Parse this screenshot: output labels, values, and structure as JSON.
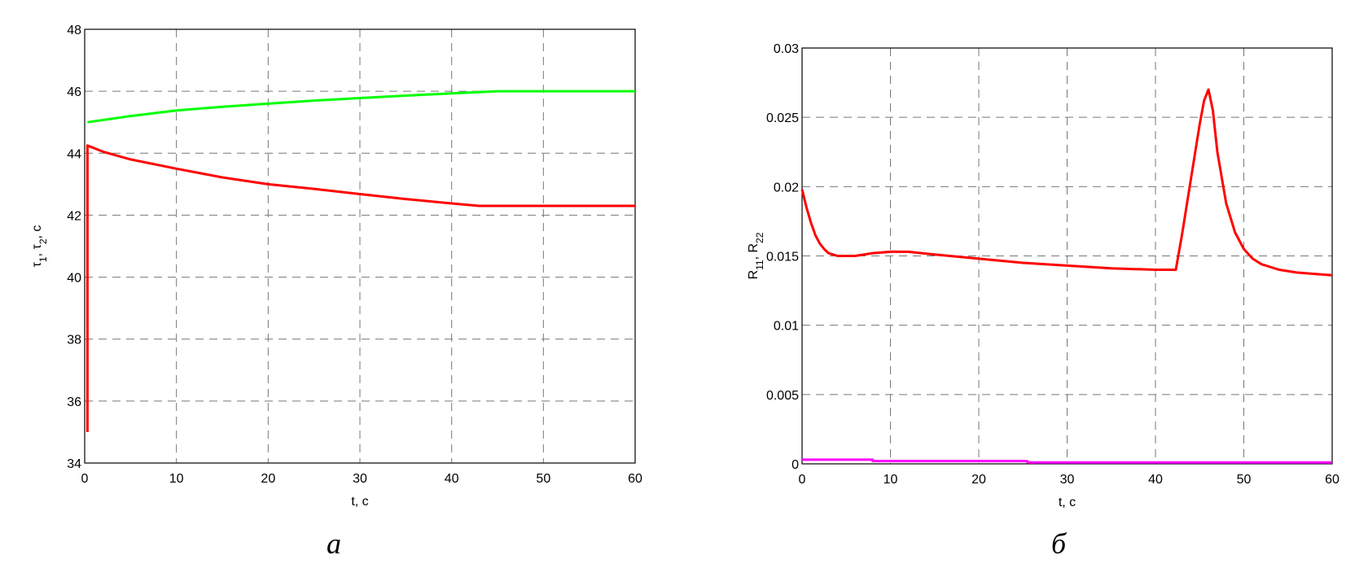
{
  "chart_data": [
    {
      "type": "line",
      "caption": "а",
      "xlabel": "t, c",
      "ylabel": "τ1, τ2, c",
      "ylabel_parts": {
        "a": "τ",
        "a_sub": "1",
        "b": "τ",
        "b_sub": "2",
        "unit": "c"
      },
      "xlim": [
        0,
        60
      ],
      "ylim": [
        34,
        48
      ],
      "xticks": [
        0,
        10,
        20,
        30,
        40,
        50,
        60
      ],
      "yticks": [
        34,
        36,
        38,
        40,
        42,
        44,
        46,
        48
      ],
      "grid": true,
      "series": [
        {
          "color": "#00ff00",
          "x": [
            0.3,
            5,
            10,
            15,
            20,
            25,
            30,
            35,
            40,
            45,
            50,
            60
          ],
          "y": [
            45.0,
            45.2,
            45.38,
            45.5,
            45.6,
            45.7,
            45.78,
            45.86,
            45.93,
            46.0,
            46.0,
            46.0
          ]
        },
        {
          "color": "#ff0000",
          "x": [
            0.3,
            0.3,
            2,
            5,
            10,
            15,
            20,
            25,
            30,
            35,
            40,
            43,
            50,
            60
          ],
          "y": [
            35.0,
            44.25,
            44.05,
            43.8,
            43.5,
            43.22,
            43.0,
            42.85,
            42.68,
            42.52,
            42.38,
            42.3,
            42.3,
            42.3
          ]
        }
      ]
    },
    {
      "type": "line",
      "caption": "б",
      "xlabel": "t, c",
      "ylabel": "R11, R22",
      "ylabel_parts": {
        "a": "R",
        "a_sub": "11",
        "b": "R",
        "b_sub": "22"
      },
      "xlim": [
        0,
        60
      ],
      "ylim": [
        0,
        0.03
      ],
      "xticks": [
        0,
        10,
        20,
        30,
        40,
        50,
        60
      ],
      "yticks": [
        "0",
        "0.005",
        "0.01",
        "0.015",
        "0.02",
        "0.025",
        "0.03"
      ],
      "grid": true,
      "series": [
        {
          "color": "#ff0000",
          "x": [
            0,
            0.5,
            1,
            1.5,
            2,
            2.5,
            3,
            4,
            6,
            8,
            10,
            12,
            15,
            20,
            25,
            30,
            35,
            40,
            42.3,
            43,
            44,
            45,
            45.5,
            46,
            46.5,
            47,
            48,
            49,
            50,
            51,
            52,
            54,
            56,
            58,
            60
          ],
          "y": [
            0.0198,
            0.0185,
            0.0174,
            0.0165,
            0.0159,
            0.0155,
            0.0152,
            0.015,
            0.015,
            0.0152,
            0.0153,
            0.0153,
            0.0151,
            0.0148,
            0.0145,
            0.0143,
            0.0141,
            0.014,
            0.014,
            0.0165,
            0.0205,
            0.0245,
            0.0262,
            0.027,
            0.0255,
            0.0225,
            0.0188,
            0.0167,
            0.0155,
            0.0148,
            0.0144,
            0.014,
            0.0138,
            0.0137,
            0.0136
          ]
        },
        {
          "color": "#ff00ff",
          "x": [
            0,
            8,
            8,
            25.5,
            25.5,
            60
          ],
          "y": [
            0.0003,
            0.0003,
            0.0002,
            0.0002,
            0.0001,
            0.0001
          ]
        }
      ]
    }
  ]
}
